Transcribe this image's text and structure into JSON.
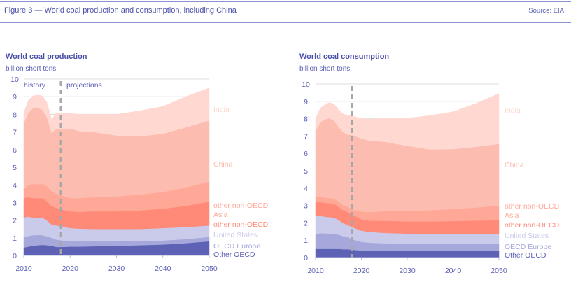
{
  "figure": {
    "title": "Figure 3 — World coal production and consumption, including China",
    "source": "Source: EIA"
  },
  "colors": {
    "other_oecd": "#5d62b5",
    "oecd_europe": "#a6a8dc",
    "united_states": "#cacbeb",
    "other_non_oecd": "#ff8a77",
    "other_non_oecd_asia": "#ffa898",
    "china": "#fdbcb0",
    "india": "#fed8d1",
    "divider": "#a7a7aa",
    "grid": "#dcdcdc"
  },
  "chart_data": [
    {
      "id": "production",
      "type": "area",
      "stacked": true,
      "title": "World coal production",
      "subtitle": "billion short tons",
      "xlabel": "",
      "ylabel": "billion short tons",
      "xlim": [
        2010,
        2050
      ],
      "ylim": [
        0,
        10
      ],
      "x_ticks": [
        "2010",
        "2020",
        "2030",
        "2040",
        "2050"
      ],
      "y_ticks": [
        "0",
        "1",
        "2",
        "3",
        "4",
        "5",
        "6",
        "7",
        "8",
        "9",
        "10"
      ],
      "grid": true,
      "divider_year": 2018,
      "annotations": [
        "history",
        "projections"
      ],
      "x": [
        2010,
        2011,
        2012,
        2013,
        2014,
        2015,
        2016,
        2017,
        2018,
        2020,
        2022,
        2025,
        2030,
        2035,
        2040,
        2045,
        2050
      ],
      "series": [
        {
          "name": "Other OECD",
          "key": "other_oecd",
          "values": [
            0.45,
            0.5,
            0.55,
            0.58,
            0.6,
            0.58,
            0.55,
            0.48,
            0.48,
            0.5,
            0.5,
            0.52,
            0.55,
            0.58,
            0.62,
            0.7,
            0.8
          ]
        },
        {
          "name": "OECD Europe",
          "key": "oecd_europe",
          "values": [
            0.6,
            0.6,
            0.6,
            0.58,
            0.55,
            0.5,
            0.45,
            0.42,
            0.38,
            0.3,
            0.3,
            0.28,
            0.25,
            0.24,
            0.23,
            0.23,
            0.25
          ]
        },
        {
          "name": "United States",
          "key": "united_states",
          "values": [
            1.1,
            1.1,
            1.0,
            0.98,
            1.0,
            0.9,
            0.75,
            0.8,
            0.8,
            0.75,
            0.72,
            0.7,
            0.7,
            0.68,
            0.7,
            0.68,
            0.65
          ]
        },
        {
          "name": "other non-OECD",
          "key": "other_non_oecd",
          "values": [
            1.1,
            1.1,
            1.1,
            1.1,
            1.1,
            1.1,
            1.05,
            1.0,
            0.95,
            0.95,
            0.95,
            1.0,
            1.0,
            1.05,
            1.1,
            1.2,
            1.35
          ]
        },
        {
          "name": "other non-OECD Asia",
          "key": "other_non_oecd_asia",
          "values": [
            0.5,
            0.7,
            0.8,
            0.8,
            0.8,
            0.85,
            0.85,
            0.8,
            0.8,
            0.75,
            0.78,
            0.8,
            0.85,
            0.9,
            0.95,
            1.05,
            1.15
          ]
        },
        {
          "name": "China",
          "key": "china",
          "values": [
            3.75,
            4.1,
            4.3,
            4.35,
            4.2,
            3.9,
            3.3,
            3.7,
            3.75,
            3.95,
            3.8,
            3.7,
            3.45,
            3.3,
            3.3,
            3.4,
            3.45
          ]
        },
        {
          "name": "India",
          "key": "india",
          "values": [
            0.6,
            0.7,
            0.7,
            0.7,
            0.8,
            0.85,
            0.75,
            0.9,
            0.9,
            0.85,
            0.95,
            1.0,
            1.2,
            1.45,
            1.55,
            1.75,
            1.85
          ]
        }
      ],
      "legend": [
        "India",
        "China",
        "other non-OECD Asia",
        "other non-OECD",
        "United States",
        "OECD Europe",
        "Other OECD"
      ],
      "legend_placement": "right"
    },
    {
      "id": "consumption",
      "type": "area",
      "stacked": true,
      "title": "World coal consumption",
      "subtitle": "billion short tons",
      "xlabel": "",
      "ylabel": "billion short tons",
      "xlim": [
        2010,
        2050
      ],
      "ylim": [
        0,
        10
      ],
      "x_ticks": [
        "2010",
        "2020",
        "2030",
        "2040",
        "2050"
      ],
      "y_ticks": [
        "0",
        "1",
        "2",
        "3",
        "4",
        "5",
        "6",
        "7",
        "8",
        "9",
        "10"
      ],
      "grid": true,
      "divider_year": 2018,
      "annotations": [],
      "x": [
        2010,
        2011,
        2012,
        2013,
        2014,
        2015,
        2016,
        2017,
        2018,
        2020,
        2022,
        2025,
        2030,
        2035,
        2040,
        2045,
        2050
      ],
      "series": [
        {
          "name": "Other OECD",
          "key": "other_oecd",
          "values": [
            0.5,
            0.5,
            0.5,
            0.5,
            0.5,
            0.5,
            0.48,
            0.48,
            0.45,
            0.4,
            0.4,
            0.4,
            0.4,
            0.4,
            0.4,
            0.4,
            0.4
          ]
        },
        {
          "name": "OECD Europe",
          "key": "oecd_europe",
          "values": [
            0.85,
            0.9,
            0.9,
            0.88,
            0.85,
            0.82,
            0.75,
            0.7,
            0.6,
            0.5,
            0.45,
            0.42,
            0.4,
            0.4,
            0.4,
            0.4,
            0.4
          ]
        },
        {
          "name": "United States",
          "key": "united_states",
          "values": [
            1.05,
            1.0,
            0.95,
            0.95,
            0.95,
            0.85,
            0.75,
            0.7,
            0.7,
            0.65,
            0.62,
            0.6,
            0.58,
            0.56,
            0.55,
            0.55,
            0.55
          ]
        },
        {
          "name": "other non-OECD",
          "key": "other_non_oecd",
          "values": [
            0.8,
            0.8,
            0.8,
            0.8,
            0.8,
            0.75,
            0.75,
            0.75,
            0.72,
            0.65,
            0.65,
            0.7,
            0.7,
            0.72,
            0.75,
            0.78,
            0.8
          ]
        },
        {
          "name": "other non-OECD Asia",
          "key": "other_non_oecd_asia",
          "values": [
            0.3,
            0.3,
            0.3,
            0.3,
            0.3,
            0.3,
            0.3,
            0.3,
            0.3,
            0.45,
            0.5,
            0.55,
            0.6,
            0.65,
            0.7,
            0.75,
            0.85
          ]
        },
        {
          "name": "China",
          "key": "china",
          "values": [
            3.8,
            4.3,
            4.5,
            4.6,
            4.5,
            4.3,
            4.2,
            4.15,
            4.3,
            4.2,
            4.1,
            4.0,
            3.75,
            3.5,
            3.45,
            3.5,
            3.55
          ]
        },
        {
          "name": "India",
          "key": "india",
          "values": [
            0.7,
            0.8,
            0.85,
            0.9,
            0.95,
            1.0,
            1.05,
            1.1,
            1.1,
            1.15,
            1.25,
            1.35,
            1.6,
            1.95,
            2.15,
            2.5,
            2.9
          ]
        }
      ],
      "legend": [
        "India",
        "China",
        "other non-OECD Asia",
        "other non-OECD",
        "United States",
        "OECD Europe",
        "Other OECD"
      ],
      "legend_placement": "right"
    }
  ],
  "legend_labels": {
    "india": "India",
    "china": "China",
    "other_non_oecd_asia_line1": "other non-OECD",
    "other_non_oecd_asia_line2": "Asia",
    "other_non_oecd": "other non-OECD",
    "united_states": "United States",
    "oecd_europe": "OECD Europe",
    "other_oecd": "Other OECD"
  }
}
